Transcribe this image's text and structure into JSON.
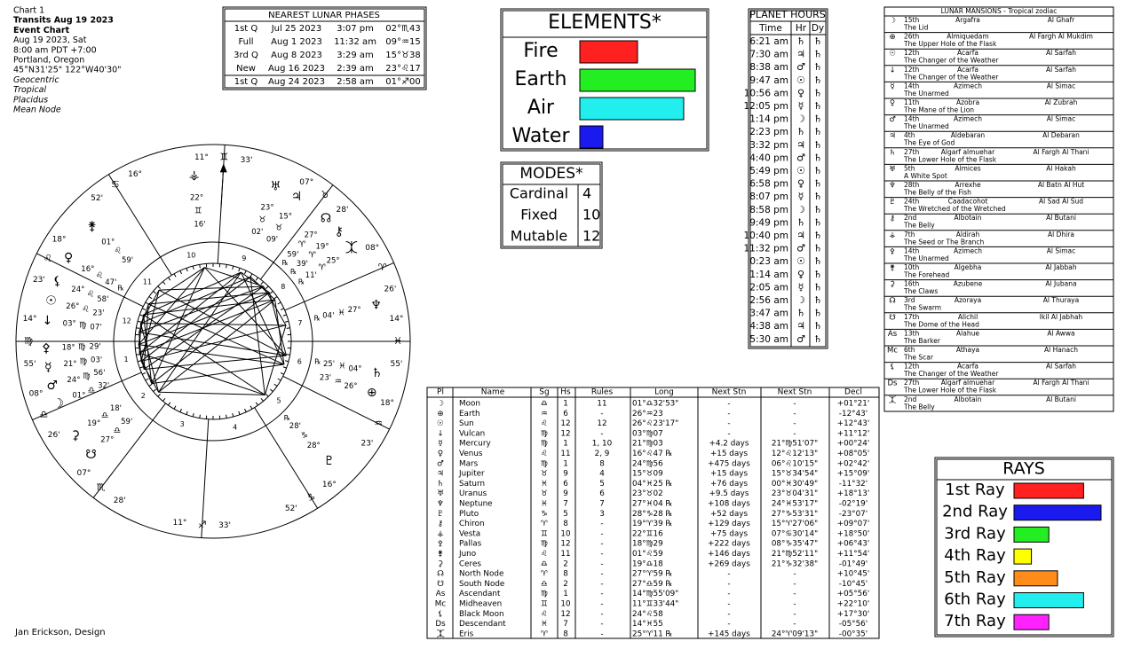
{
  "chart_info": [
    "Chart 1",
    "Transits Aug 19 2023",
    "Event Chart",
    "Aug 19 2023, Sat",
    "8:00 am  PDT +7:00",
    "Portland, Oregon",
    "45°N31'25\"  122°W40'30\"",
    "Geocentric",
    "Tropical",
    "Placidus",
    "Mean Node"
  ],
  "credit": "Jan Erickson, Design",
  "lunar_phases": {
    "title": "NEAREST LUNAR PHASES",
    "rows": [
      [
        "1st Q",
        "Jul 25 2023",
        "3:07 pm",
        "02°♏43"
      ],
      [
        "Full",
        "Aug 1 2023",
        "11:32 am",
        "09°♒15"
      ],
      [
        "3rd Q",
        "Aug 8 2023",
        "3:29 am",
        "15°♉38"
      ],
      [
        "New",
        "Aug 16 2023",
        "2:39 am",
        "23°♌17"
      ],
      [
        "1st Q",
        "Aug 24 2023",
        "2:58 am",
        "01°♐00"
      ]
    ],
    "colors": [
      "#0000d0",
      "#00a0b0",
      "#00a000",
      "#d40000",
      "#d40000"
    ]
  },
  "elements": {
    "title": "ELEMENTS*",
    "items": [
      {
        "name": "Fire",
        "value": 5,
        "color": "#ff2020"
      },
      {
        "name": "Earth",
        "value": 10,
        "color": "#22ee22"
      },
      {
        "name": "Air",
        "value": 9,
        "color": "#22eeee"
      },
      {
        "name": "Water",
        "value": 2,
        "color": "#1a1aee"
      }
    ]
  },
  "modes": {
    "title": "MODES*",
    "rows": [
      [
        "Cardinal",
        4
      ],
      [
        "Fixed",
        10
      ],
      [
        "Mutable",
        12
      ]
    ]
  },
  "rays": {
    "title": "RAYS",
    "items": [
      {
        "name": "1st Ray",
        "value": 8,
        "color": "#ff2020"
      },
      {
        "name": "2nd Ray",
        "value": 10,
        "color": "#1a1aee"
      },
      {
        "name": "3rd Ray",
        "value": 4,
        "color": "#22ee22"
      },
      {
        "name": "4th Ray",
        "value": 2,
        "color": "#ffff00"
      },
      {
        "name": "5th Ray",
        "value": 5,
        "color": "#ff8c1a"
      },
      {
        "name": "6th Ray",
        "value": 8,
        "color": "#22eeee"
      },
      {
        "name": "7th Ray",
        "value": 4,
        "color": "#ff22ff"
      }
    ]
  },
  "planet_hours": {
    "title": "PLANET HOURS",
    "columns": [
      "Time",
      "Hr",
      "Dy"
    ],
    "rows": [
      [
        "6:21 am",
        "♄",
        "♄"
      ],
      [
        "7:30 am",
        "♃",
        "♄"
      ],
      [
        "8:38 am",
        "♂",
        "♄"
      ],
      [
        "9:47 am",
        "☉",
        "♄"
      ],
      [
        "10:56 am",
        "♀",
        "♄"
      ],
      [
        "12:05 pm",
        "☿",
        "♄"
      ],
      [
        "1:14 pm",
        "☽",
        "♄"
      ],
      [
        "2:23 pm",
        "♄",
        "♄"
      ],
      [
        "3:32 pm",
        "♃",
        "♄"
      ],
      [
        "4:40 pm",
        "♂",
        "♄"
      ],
      [
        "5:49 pm",
        "☉",
        "♄"
      ],
      [
        "6:58 pm",
        "♀",
        "♄"
      ],
      [
        "8:07 pm",
        "☿",
        "♄"
      ],
      [
        "8:58 pm",
        "☽",
        "♄"
      ],
      [
        "9:49 pm",
        "♄",
        "♄"
      ],
      [
        "10:40 pm",
        "♃",
        "♄"
      ],
      [
        "11:32 pm",
        "♂",
        "♄"
      ],
      [
        "0:23 am",
        "☉",
        "♄"
      ],
      [
        "1:14 am",
        "♀",
        "♄"
      ],
      [
        "2:05 am",
        "☿",
        "♄"
      ],
      [
        "2:56 am",
        "☽",
        "♄"
      ],
      [
        "3:47 am",
        "♄",
        "♄"
      ],
      [
        "4:38 am",
        "♃",
        "♄"
      ],
      [
        "5:30 am",
        "♂",
        "♄"
      ]
    ]
  },
  "lunar_mansions": {
    "title": "LUNAR MANSIONS - Tropical zodiac",
    "rows": [
      [
        "☽",
        "15th",
        "Argafra",
        "Al Ghafr",
        "The Lid"
      ],
      [
        "⊕",
        "26th",
        "Almiquedam",
        "Al Fargh Al Mukdim",
        "The Upper Hole of the Flask"
      ],
      [
        "☉",
        "12th",
        "Acarfa",
        "Al Sarfah",
        "The Changer of the Weather"
      ],
      [
        "↓",
        "12th",
        "Acarfa",
        "Al Sarfah",
        "The Changer of the Weather"
      ],
      [
        "☿",
        "14th",
        "Azimech",
        "Al Simac",
        "The Unarmed"
      ],
      [
        "♀",
        "11th",
        "Azobra",
        "Al Zubrah",
        "The Mane of the Lion"
      ],
      [
        "♂",
        "14th",
        "Azimech",
        "Al Simac",
        "The Unarmed"
      ],
      [
        "♃",
        "4th",
        "Aldebaran",
        "Al Debaran",
        "The Eye of God"
      ],
      [
        "♄",
        "27th",
        "Algarf almuehar",
        "Al Fargh Al Thani",
        "The Lower Hole of the Flask"
      ],
      [
        "♅",
        "5th",
        "Almices",
        "Al Hakah",
        "A White Spot"
      ],
      [
        "♆",
        "28th",
        "Arrexhe",
        "Al Batn Al Hut",
        "The Belly of the Fish"
      ],
      [
        "♇",
        "24th",
        "Caadacohot",
        "Al Sad Al Sud",
        "The Wretched of the Wretched"
      ],
      [
        "⚷",
        "2nd",
        "Albotain",
        "Al Butani",
        "The Belly"
      ],
      [
        "⚶",
        "7th",
        "Aldirah",
        "Al Dhira",
        "The Seed or The Branch"
      ],
      [
        "⚴",
        "14th",
        "Azimech",
        "Al Simac",
        "The Unarmed"
      ],
      [
        "⚵",
        "10th",
        "Algebha",
        "Al Jabbah",
        "The Forehead"
      ],
      [
        "⚳",
        "16th",
        "Azubene",
        "Al Jubana",
        "The Claws"
      ],
      [
        "☊",
        "3rd",
        "Azoraya",
        "Al Thuraya",
        "The Swarm"
      ],
      [
        "☋",
        "17th",
        "Alichil",
        "Ikil Al Jabhah",
        "The Dome of the Head"
      ],
      [
        "As",
        "13th",
        "Alahue",
        "Al Awwa",
        "The Barker"
      ],
      [
        "Mc",
        "6th",
        "Athaya",
        "Al Hanach",
        "The Scar"
      ],
      [
        "⚸",
        "12th",
        "Acarfa",
        "Al Sarfah",
        "The Changer of the Weather"
      ],
      [
        "Ds",
        "27th",
        "Algarf almuehar",
        "Al Fargh Al Thani",
        "The Lower Hole of the Flask"
      ],
      [
        "⯰",
        "2nd",
        "Albotain",
        "Al Butani",
        "The Belly"
      ]
    ]
  },
  "planets": {
    "columns": [
      "Pl",
      "Name",
      "Sg",
      "Hs",
      "Rules",
      "Long",
      "Next Stn",
      "Next Stn",
      "Decl"
    ],
    "rows": [
      {
        "cells": [
          "☽",
          "Moon",
          "♎",
          "1",
          "11",
          "01°♎32'53\"",
          "-",
          "-",
          "+01°21'"
        ],
        "color": "#a0a000",
        "long_color": "#00a0b0"
      },
      {
        "cells": [
          "⊕",
          "Earth",
          "♒",
          "6",
          "-",
          "26°♒23",
          "-",
          "-",
          "-12°43'"
        ],
        "color": "#008080",
        "long_color": "#00a0b0"
      },
      {
        "cells": [
          "☉",
          "Sun",
          "♌",
          "12",
          "12",
          "26°♌23'17\"",
          "-",
          "-",
          "+12°43'"
        ],
        "color": "#e08000",
        "long_color": "#d40000"
      },
      {
        "cells": [
          "↓",
          "Vulcan",
          "♍",
          "12",
          "-",
          "03°♍07",
          "-",
          "-",
          "+11°12'"
        ],
        "color": "#d00000",
        "long_color": "#00a000"
      },
      {
        "cells": [
          "☿",
          "Mercury",
          "♍",
          "1",
          "1, 10",
          "21°♍03",
          "+4.2 days",
          "21°♍51'07\"",
          "+00°24'"
        ],
        "color": "#800080",
        "long_color": "#00a000"
      },
      {
        "cells": [
          "♀",
          "Venus",
          "♌",
          "11",
          "2, 9",
          "16°♌47 ℞",
          "+15 days",
          "12°♌12'13\"",
          "+08°05'"
        ],
        "color": "#008080",
        "long_color": "#d40000"
      },
      {
        "cells": [
          "♂",
          "Mars",
          "♍",
          "1",
          "8",
          "24°♍56",
          "+475 days",
          "06°♌10'15\"",
          "+02°42'"
        ],
        "color": "#d00000",
        "long_color": "#00a000"
      },
      {
        "cells": [
          "♃",
          "Jupiter",
          "♉",
          "9",
          "4",
          "15°♉09",
          "+15 days",
          "15°♉34'54\"",
          "+15°09'"
        ],
        "color": "#808080",
        "long_color": "#00a000"
      },
      {
        "cells": [
          "♄",
          "Saturn",
          "♓",
          "6",
          "5",
          "04°♓25 ℞",
          "+76 days",
          "00°♓30'49\"",
          "-11°32'"
        ],
        "color": "#804000",
        "long_color": "#0000d0"
      },
      {
        "cells": [
          "♅",
          "Uranus",
          "♉",
          "9",
          "6",
          "23°♉02",
          "+9.5 days",
          "23°♉04'31\"",
          "+18°13'"
        ],
        "color": "#800080",
        "long_color": "#00a000"
      },
      {
        "cells": [
          "♆",
          "Neptune",
          "♓",
          "7",
          "7",
          "27°♓04 ℞",
          "+108 days",
          "24°♓53'17\"",
          "-02°19'"
        ],
        "color": "#0000c0",
        "long_color": "#0000d0"
      },
      {
        "cells": [
          "♇",
          "Pluto",
          "♑",
          "5",
          "3",
          "28°♑28 ℞",
          "+52 days",
          "27°♑53'31\"",
          "-23°07'"
        ],
        "color": "#800000",
        "long_color": "#00a000"
      },
      {
        "cells": [
          "⚷",
          "Chiron",
          "♈",
          "8",
          "-",
          "19°♈39 ℞",
          "+129 days",
          "15°♈27'06\"",
          "+09°07'"
        ],
        "color": "#008000",
        "long_color": "#d40000"
      },
      {
        "cells": [
          "⚶",
          "Vesta",
          "♊",
          "10",
          "-",
          "22°♊16",
          "+75 days",
          "07°♋30'14\"",
          "+18°50'"
        ],
        "color": "#000000",
        "long_color": "#00a0b0"
      },
      {
        "cells": [
          "⚴",
          "Pallas",
          "♍",
          "12",
          "-",
          "18°♍29",
          "+222 days",
          "08°♑35'47\"",
          "+06°43'"
        ],
        "color": "#000000",
        "long_color": "#00a000"
      },
      {
        "cells": [
          "⚵",
          "Juno",
          "♌",
          "11",
          "-",
          "01°♌59",
          "+146 days",
          "21°♍52'11\"",
          "+11°54'"
        ],
        "color": "#000000",
        "long_color": "#d40000"
      },
      {
        "cells": [
          "⚳",
          "Ceres",
          "♎",
          "2",
          "-",
          "19°♎18",
          "+269 days",
          "21°♑32'38\"",
          "-01°49'"
        ],
        "color": "#000000",
        "long_color": "#00a0b0"
      },
      {
        "cells": [
          "☊",
          "North Node",
          "♈",
          "8",
          "-",
          "27°♈59 ℞",
          "-",
          "-",
          "+10°45'"
        ],
        "color": "#000000",
        "long_color": "#d40000"
      },
      {
        "cells": [
          "☋",
          "South Node",
          "♎",
          "2",
          "-",
          "27°♎59 ℞",
          "-",
          "-",
          "-10°45'"
        ],
        "color": "#000000",
        "long_color": "#00a0b0"
      },
      {
        "cells": [
          "As",
          "Ascendant",
          "♍",
          "1",
          "-",
          "14°♍55'09\"",
          "-",
          "-",
          "+05°56'"
        ],
        "color": "#000000",
        "long_color": "#00a000"
      },
      {
        "cells": [
          "Mc",
          "Midheaven",
          "♊",
          "10",
          "-",
          "11°♊33'44\"",
          "-",
          "-",
          "+22°10'"
        ],
        "color": "#000000",
        "long_color": "#00a0b0"
      },
      {
        "cells": [
          "⚸",
          "Black Moon",
          "♌",
          "12",
          "-",
          "24°♌58",
          "-",
          "-",
          "+17°30'"
        ],
        "color": "#000000",
        "long_color": "#d40000"
      },
      {
        "cells": [
          "Ds",
          "Descendant",
          "♓",
          "7",
          "-",
          "14°♓55",
          "-",
          "-",
          "-05°56'"
        ],
        "color": "#000000",
        "long_color": "#0000d0"
      },
      {
        "cells": [
          "⯰",
          "Eris",
          "♈",
          "8",
          "-",
          "25°♈11 ℞",
          "+145 days",
          "24°♈09'13\"",
          "-00°35'"
        ],
        "color": "#000000",
        "long_color": "#d40000"
      }
    ]
  },
  "wheel": {
    "house_numbers": [
      1,
      2,
      3,
      4,
      5,
      6,
      7,
      8,
      9,
      10,
      11,
      12
    ],
    "cusps": [
      {
        "deg": "14°",
        "sign": "♍",
        "min": "55'",
        "sign_color": "#00a000"
      },
      {
        "deg": "08°",
        "sign": "♎",
        "min": "26'",
        "sign_color": "#00a0b0"
      },
      {
        "deg": "07°",
        "sign": "♏",
        "min": "28'",
        "sign_color": "#0000d0"
      },
      {
        "deg": "11°",
        "sign": "♐",
        "min": "33'",
        "sign_color": "#d40000"
      },
      {
        "deg": "16°",
        "sign": "♑",
        "min": "52'",
        "sign_color": "#00a000"
      },
      {
        "deg": "18°",
        "sign": "♒",
        "min": "23'",
        "sign_color": "#00a0b0"
      },
      {
        "deg": "14°",
        "sign": "♓",
        "min": "55'",
        "sign_color": "#0000d0"
      },
      {
        "deg": "08°",
        "sign": "♈",
        "min": "26'",
        "sign_color": "#d40000"
      },
      {
        "deg": "07°",
        "sign": "♉",
        "min": "28'",
        "sign_color": "#00a000"
      },
      {
        "deg": "11°",
        "sign": "♊",
        "min": "33'",
        "sign_color": "#00a0b0"
      },
      {
        "deg": "16°",
        "sign": "♋",
        "min": "52'",
        "sign_color": "#0000d0"
      },
      {
        "deg": "18°",
        "sign": "♌",
        "min": "23'",
        "sign_color": "#d40000"
      }
    ],
    "planets": [
      {
        "glyph": "⚶",
        "deg": "22°",
        "sign": "♊",
        "min": "16'",
        "color": "#000000",
        "sign_color": "#00a0b0"
      },
      {
        "glyph": "♅",
        "deg": "23°",
        "sign": "♉",
        "min": "02'",
        "color": "#800080",
        "sign_color": "#00a000"
      },
      {
        "glyph": "♃",
        "deg": "15°",
        "sign": "♉",
        "min": "09'",
        "color": "#808080",
        "sign_color": "#00a000"
      },
      {
        "glyph": "☊",
        "deg": "27°",
        "sign": "♈",
        "min": "59'",
        "rx": "℞",
        "color": "#000000",
        "sign_color": "#d40000"
      },
      {
        "glyph": "⚷",
        "deg": "19°",
        "sign": "♈",
        "min": "39'",
        "rx": "℞",
        "color": "#008000",
        "sign_color": "#d40000"
      },
      {
        "glyph": "⯰",
        "deg": "25°",
        "sign": "♈",
        "min": "11'",
        "rx": "℞",
        "color": "#000000",
        "sign_color": "#d40000"
      },
      {
        "glyph": "♆",
        "deg": "27°",
        "sign": "♓",
        "min": "04'",
        "rx": "℞",
        "color": "#008000",
        "sign_color": "#0000d0"
      },
      {
        "glyph": "♄",
        "deg": "04°",
        "sign": "♓",
        "min": "25'",
        "rx": "℞",
        "color": "#804000",
        "sign_color": "#0000d0"
      },
      {
        "glyph": "⊕",
        "deg": "26°",
        "sign": "♒",
        "min": "23'",
        "color": "#008000",
        "sign_color": "#00a0b0"
      },
      {
        "glyph": "♇",
        "deg": "28°",
        "sign": "♑",
        "min": "28'",
        "rx": "℞",
        "color": "#800000",
        "sign_color": "#00a000"
      },
      {
        "glyph": "⚵",
        "deg": "01°",
        "sign": "♌",
        "min": "59'",
        "color": "#000000",
        "sign_color": "#d40000"
      },
      {
        "glyph": "♀",
        "deg": "16°",
        "sign": "♌",
        "min": "47'",
        "rx": "℞",
        "color": "#008080",
        "sign_color": "#d40000"
      },
      {
        "glyph": "⚸",
        "deg": "24°",
        "sign": "♌",
        "min": "58'",
        "color": "#000000",
        "sign_color": "#d40000"
      },
      {
        "glyph": "☉",
        "deg": "26°",
        "sign": "♌",
        "min": "23'",
        "color": "#e08000",
        "sign_color": "#d40000"
      },
      {
        "glyph": "↓",
        "deg": "03°",
        "sign": "♍",
        "min": "07'",
        "color": "#d00000",
        "sign_color": "#00a000"
      },
      {
        "glyph": "⚴",
        "deg": "18°",
        "sign": "♍",
        "min": "29'",
        "color": "#000000",
        "sign_color": "#00a000"
      },
      {
        "glyph": "☿",
        "deg": "21°",
        "sign": "♍",
        "min": "03'",
        "color": "#800080",
        "sign_color": "#00a000"
      },
      {
        "glyph": "♂",
        "deg": "24°",
        "sign": "♍",
        "min": "56'",
        "color": "#d00000",
        "sign_color": "#00a000"
      },
      {
        "glyph": "☽",
        "deg": "01°",
        "sign": "♎",
        "min": "32'",
        "color": "#a0a000",
        "sign_color": "#00a0b0"
      },
      {
        "glyph": "⚳",
        "deg": "19°",
        "sign": "♎",
        "min": "18'",
        "color": "#000000",
        "sign_color": "#00a0b0"
      },
      {
        "glyph": "☋",
        "deg": "27°",
        "sign": "♎",
        "min": "59'",
        "color": "#000000",
        "sign_color": "#00a0b0"
      }
    ]
  }
}
